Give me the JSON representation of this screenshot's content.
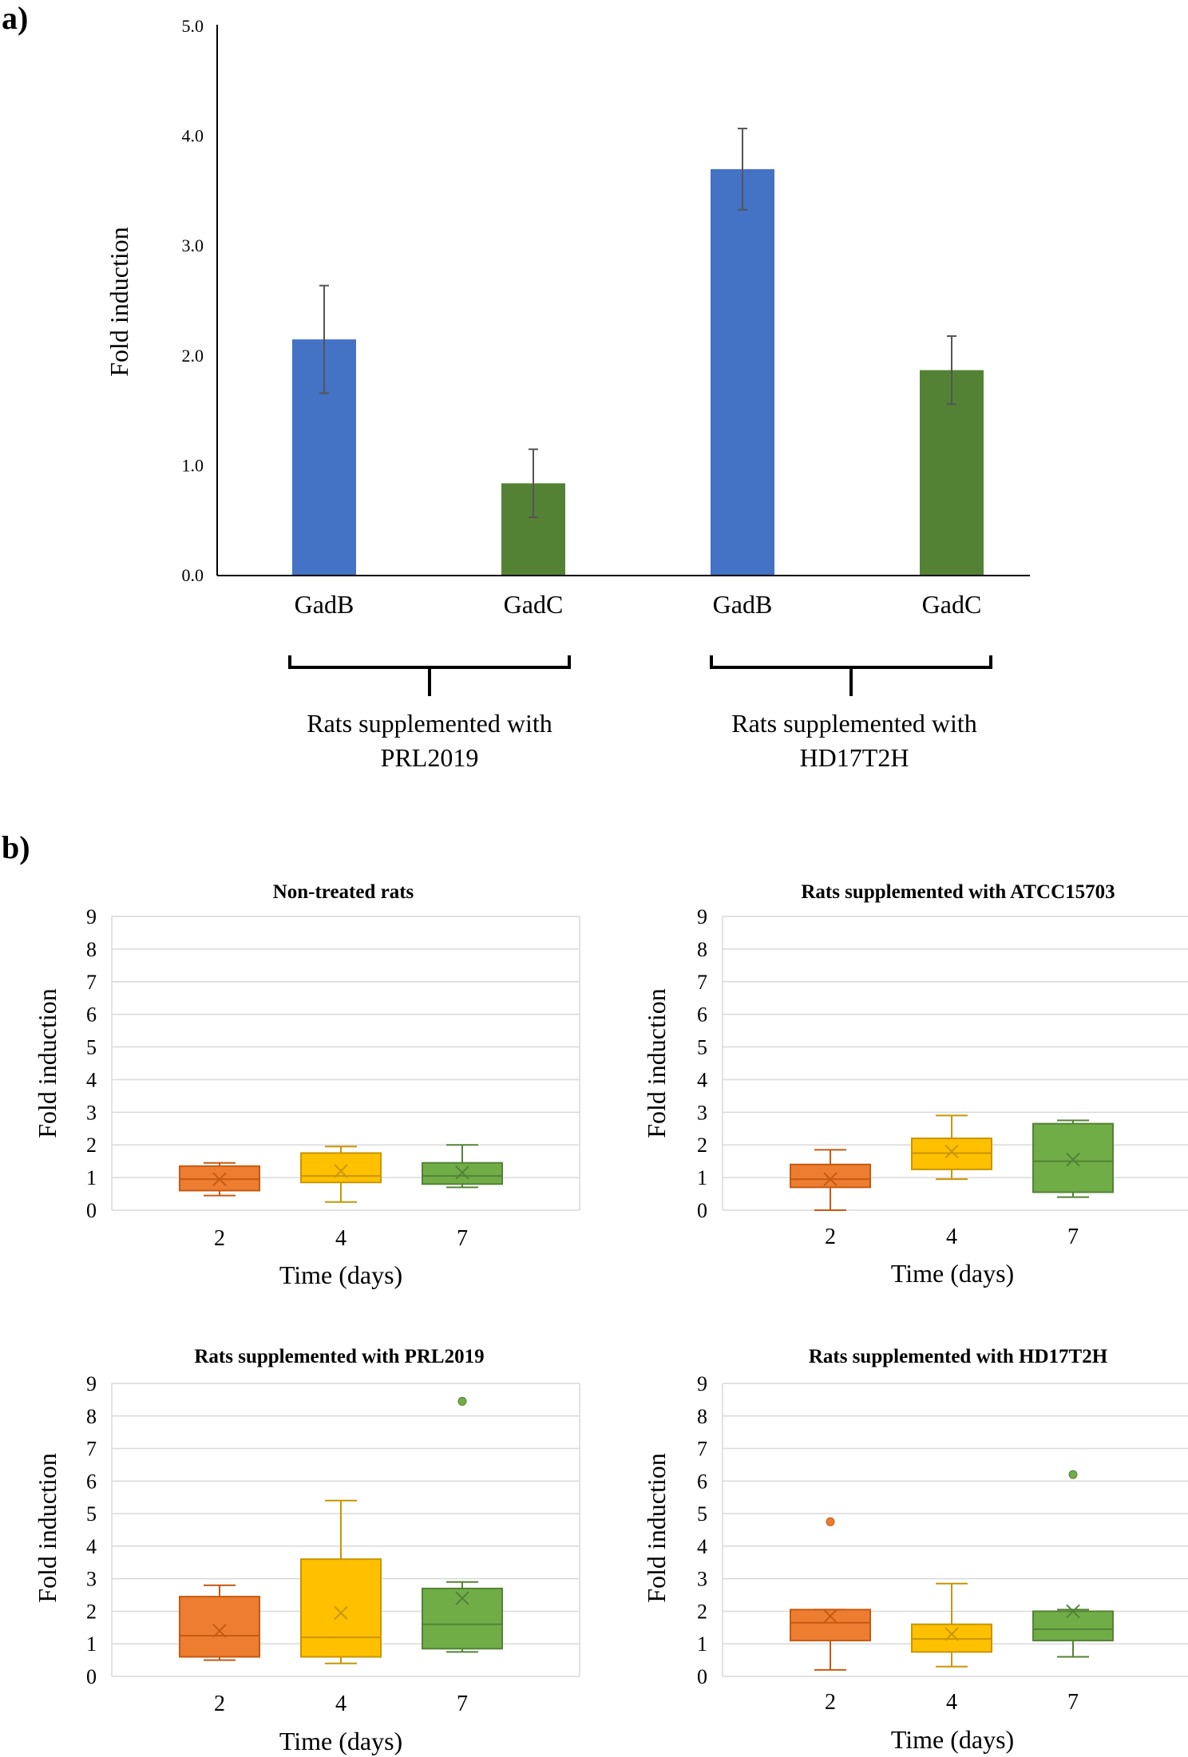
{
  "panels": {
    "a": "a)",
    "b": "b)"
  },
  "chart_data": [
    {
      "type": "bar",
      "panel": "a)",
      "title": "",
      "ylabel": "Fold induction",
      "xlabel": "",
      "ylim": [
        0,
        5
      ],
      "ytick_labels": [
        "0.0",
        "1.0",
        "2.0",
        "3.0",
        "4.0",
        "5.0"
      ],
      "categories": [
        "GadB",
        "GadC",
        "GadB",
        "GadC"
      ],
      "values": [
        2.15,
        0.84,
        3.7,
        1.87
      ],
      "error": [
        0.49,
        0.31,
        0.37,
        0.31
      ],
      "colors": [
        "#4472C4",
        "#548235",
        "#4472C4",
        "#548235"
      ],
      "groups": [
        {
          "line1": "Rats supplemented with",
          "line2": "PRL2019"
        },
        {
          "line1": "Rats supplemented with",
          "line2": "HD17T2H"
        }
      ]
    },
    {
      "type": "box",
      "title": "Non-treated rats",
      "xlabel": "Time (days)",
      "ylabel": "Fold induction",
      "ylim": [
        0,
        9
      ],
      "yticks": [
        "0",
        "1",
        "2",
        "3",
        "4",
        "5",
        "6",
        "7",
        "8",
        "9"
      ],
      "categories": [
        "2",
        "4",
        "7"
      ],
      "colors": [
        "#ED7D31",
        "#FFC000",
        "#70AD47"
      ],
      "boxes": [
        {
          "min": 0.45,
          "q1": 0.6,
          "median": 0.95,
          "q3": 1.35,
          "max": 1.45,
          "mean": 0.95,
          "outliers": []
        },
        {
          "min": 0.25,
          "q1": 0.85,
          "median": 1.05,
          "q3": 1.75,
          "max": 1.95,
          "mean": 1.2,
          "outliers": []
        },
        {
          "min": 0.7,
          "q1": 0.8,
          "median": 1.05,
          "q3": 1.45,
          "max": 2.0,
          "mean": 1.15,
          "outliers": []
        }
      ]
    },
    {
      "type": "box",
      "title": "Rats supplemented with ATCC15703",
      "xlabel": "Time (days)",
      "ylabel": "Fold induction",
      "ylim": [
        0,
        9
      ],
      "yticks": [
        "0",
        "1",
        "2",
        "3",
        "4",
        "5",
        "6",
        "7",
        "8",
        "9"
      ],
      "categories": [
        "2",
        "4",
        "7"
      ],
      "colors": [
        "#ED7D31",
        "#FFC000",
        "#70AD47"
      ],
      "boxes": [
        {
          "min": 0.0,
          "q1": 0.7,
          "median": 0.95,
          "q3": 1.4,
          "max": 1.85,
          "mean": 0.95,
          "outliers": []
        },
        {
          "min": 0.95,
          "q1": 1.25,
          "median": 1.75,
          "q3": 2.2,
          "max": 2.9,
          "mean": 1.8,
          "outliers": []
        },
        {
          "min": 0.4,
          "q1": 0.55,
          "median": 1.5,
          "q3": 2.65,
          "max": 2.75,
          "mean": 1.55,
          "outliers": []
        }
      ]
    },
    {
      "type": "box",
      "title": "Rats supplemented with PRL2019",
      "xlabel": "Time (days)",
      "ylabel": "Fold induction",
      "ylim": [
        0,
        9
      ],
      "yticks": [
        "0",
        "1",
        "2",
        "3",
        "4",
        "5",
        "6",
        "7",
        "8",
        "9"
      ],
      "categories": [
        "2",
        "4",
        "7"
      ],
      "colors": [
        "#ED7D31",
        "#FFC000",
        "#70AD47"
      ],
      "boxes": [
        {
          "min": 0.5,
          "q1": 0.6,
          "median": 1.25,
          "q3": 2.45,
          "max": 2.8,
          "mean": 1.4,
          "outliers": []
        },
        {
          "min": 0.4,
          "q1": 0.6,
          "median": 1.2,
          "q3": 3.6,
          "max": 5.4,
          "mean": 1.95,
          "outliers": []
        },
        {
          "min": 0.75,
          "q1": 0.85,
          "median": 1.6,
          "q3": 2.7,
          "max": 2.9,
          "mean": 2.4,
          "outliers": [
            8.45
          ]
        }
      ]
    },
    {
      "type": "box",
      "title": "Rats supplemented with HD17T2H",
      "xlabel": "Time (days)",
      "ylabel": "Fold induction",
      "ylim": [
        0,
        9
      ],
      "yticks": [
        "0",
        "1",
        "2",
        "3",
        "4",
        "5",
        "6",
        "7",
        "8",
        "9"
      ],
      "categories": [
        "2",
        "4",
        "7"
      ],
      "colors": [
        "#ED7D31",
        "#FFC000",
        "#70AD47"
      ],
      "boxes": [
        {
          "min": 0.2,
          "q1": 1.1,
          "median": 1.65,
          "q3": 2.05,
          "max": 2.05,
          "mean": 1.85,
          "outliers": [
            4.75
          ]
        },
        {
          "min": 0.3,
          "q1": 0.75,
          "median": 1.15,
          "q3": 1.6,
          "max": 2.85,
          "mean": 1.3,
          "outliers": []
        },
        {
          "min": 0.6,
          "q1": 1.1,
          "median": 1.45,
          "q3": 2.0,
          "max": 2.05,
          "mean": 2.0,
          "outliers": [
            6.2
          ]
        }
      ]
    }
  ]
}
